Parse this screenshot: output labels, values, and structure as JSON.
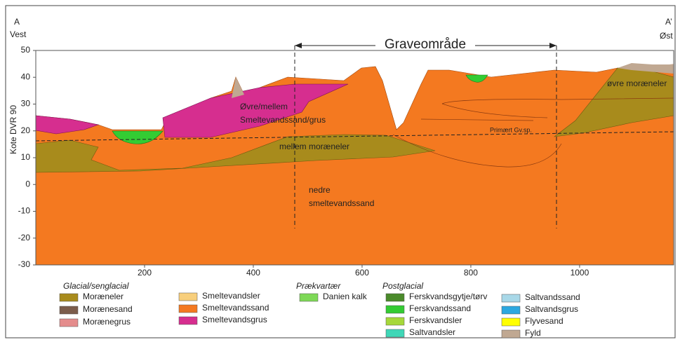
{
  "section": {
    "point_a": "A",
    "point_a_side": "Vest",
    "point_b": "A’",
    "point_b_side": "Øst",
    "excavation": "Graveområde",
    "y_axis_label": "Kote DVR 90",
    "xlim": [
      0,
      1173
    ],
    "xticks": [
      200,
      400,
      600,
      800,
      1000
    ],
    "ylim": [
      -30,
      50
    ],
    "yticks": [
      50,
      40,
      30,
      20,
      10,
      0,
      -10,
      -20,
      -30
    ],
    "labels": [
      [
        "Øvre/mellem",
        "Smeltevandssand/grus"
      ],
      [
        "mellem moræneler"
      ],
      [
        "nedre",
        "smeltevandssand"
      ],
      [
        "Primært Gv.sp."
      ],
      [
        "øvre moræneler"
      ]
    ]
  },
  "legend": {
    "groups": [
      {
        "title": "Glacial/senglacial",
        "items": [
          {
            "name": "Moræneler",
            "color": "#a88b1c"
          },
          {
            "name": "Morænesand",
            "color": "#7b5c4b"
          },
          {
            "name": "Morænegrus",
            "color": "#e48c8c"
          }
        ]
      },
      {
        "items": [
          {
            "name": "Smeltevandsler",
            "color": "#f8cf7c"
          },
          {
            "name": "Smeltevandssand",
            "color": "#f47920"
          },
          {
            "name": "Smeltevandsgrus",
            "color": "#d62e8f"
          }
        ]
      },
      {
        "title": "Prækvartær",
        "items": [
          {
            "name": "Danien kalk",
            "color": "#7ed957"
          }
        ]
      },
      {
        "title": "Postglacial",
        "items": [
          {
            "name": "Ferskvandsgytje/tørv",
            "color": "#4a8a2a"
          },
          {
            "name": "Ferskvandssand",
            "color": "#33cc33"
          },
          {
            "name": "Ferskvandsler",
            "color": "#a6d83a"
          },
          {
            "name": "Saltvandsler",
            "color": "#3fd7b7"
          }
        ]
      },
      {
        "items": [
          {
            "name": "Saltvandssand",
            "color": "#a8d8e8"
          },
          {
            "name": "Saltvandsgrus",
            "color": "#2ca8e0"
          },
          {
            "name": "Flyvesand",
            "color": "#ffff00"
          },
          {
            "name": "Fyld",
            "color": "#c0a892"
          }
        ]
      }
    ]
  }
}
